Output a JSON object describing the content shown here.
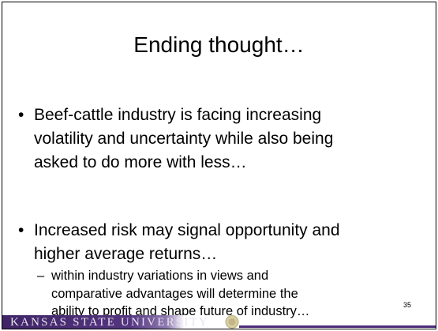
{
  "slide": {
    "title": "Ending thought…",
    "bullets": [
      {
        "lines": [
          "Beef-cattle industry is facing increasing",
          "volatility and uncertainty while also being",
          "asked to do more with less…"
        ]
      },
      {
        "lines": [
          "Increased risk may signal opportunity and",
          "higher average returns…"
        ],
        "subbullets": [
          {
            "lines": [
              "within industry variations in views and",
              "comparative advantages will determine the",
              "ability to profit and shape future of industry…"
            ]
          }
        ]
      }
    ],
    "page_number": "35",
    "footer": "KANSAS STATE UNIVERSITY"
  }
}
